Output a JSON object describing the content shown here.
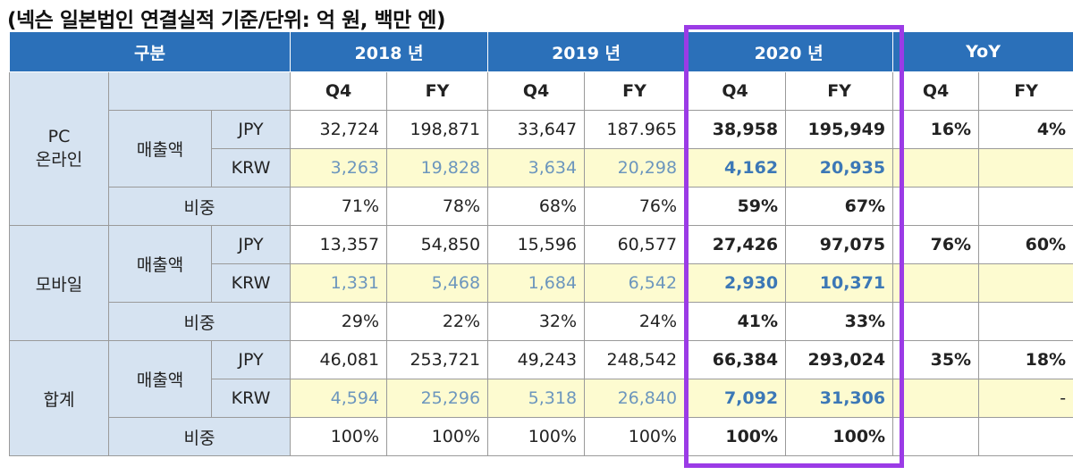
{
  "caption": "(넥슨 일본법인 연결실적 기준/단위: 억 원, 백만 엔)",
  "header": {
    "category": "구분",
    "y2018": "2018 년",
    "y2019": "2019 년",
    "y2020": "2020 년",
    "yoy": "YoY"
  },
  "subheader": {
    "q4": "Q4",
    "fy": "FY"
  },
  "labels": {
    "revenue": "매출액",
    "share": "비중",
    "jpy": "JPY",
    "krw": "KRW"
  },
  "sections": {
    "pc": {
      "name_line1": "PC",
      "name_line2": "온라인",
      "jpy": [
        "32,724",
        "198,871",
        "33,647",
        "187.965",
        "38,958",
        "195,949"
      ],
      "yoy": [
        "16%",
        "4%"
      ],
      "krw": [
        "3,263",
        "19,828",
        "3,634",
        "20,298",
        "4,162",
        "20,935"
      ],
      "share": [
        "71%",
        "78%",
        "68%",
        "76%",
        "59%",
        "67%"
      ]
    },
    "mobile": {
      "name": "모바일",
      "jpy": [
        "13,357",
        "54,850",
        "15,596",
        "60,577",
        "27,426",
        "97,075"
      ],
      "yoy": [
        "76%",
        "60%"
      ],
      "krw": [
        "1,331",
        "5,468",
        "1,684",
        "6,542",
        "2,930",
        "10,371"
      ],
      "share": [
        "29%",
        "22%",
        "32%",
        "24%",
        "41%",
        "33%"
      ]
    },
    "total": {
      "name": "합계",
      "jpy": [
        "46,081",
        "253,721",
        "49,243",
        "248,542",
        "66,384",
        "293,024"
      ],
      "yoy": [
        "35%",
        "18%"
      ],
      "krw": [
        "4,594",
        "25,296",
        "5,318",
        "26,840",
        "7,092",
        "31,306"
      ],
      "krw_yoy_fy": "-",
      "share": [
        "100%",
        "100%",
        "100%",
        "100%",
        "100%",
        "100%"
      ]
    }
  },
  "colors": {
    "header_blue": "#2b70b9",
    "section_bg": "#d6e3f1",
    "krw_row_bg": "#fdfbd0",
    "krw_text": "#6c96bd",
    "yoy_red": "#d42a2a",
    "highlight_purple": "#9b3be6"
  }
}
